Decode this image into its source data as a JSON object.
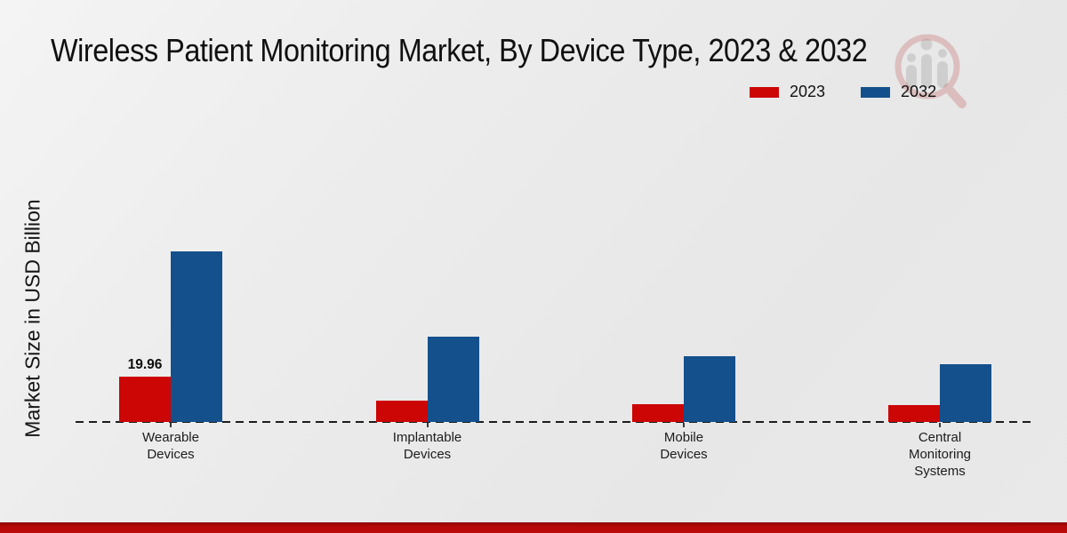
{
  "page": {
    "title": "Wireless Patient Monitoring Market, By Device Type, 2023 & 2032",
    "background_color": "#e9e9e9",
    "footer_bar_color": "#b50808",
    "watermark_icon": "magnifier-bar-chart-logo"
  },
  "chart_data": {
    "type": "bar",
    "title": "Wireless Patient Monitoring Market, By Device Type, 2023 & 2032",
    "xlabel": "",
    "ylabel": "Market Size in USD Billion",
    "categories": [
      "Wearable Devices",
      "Implantable Devices",
      "Mobile Devices",
      "Central Monitoring Systems"
    ],
    "category_label_lines": [
      [
        "Wearable",
        "Devices"
      ],
      [
        "Implantable",
        "Devices"
      ],
      [
        "Mobile",
        "Devices"
      ],
      [
        "Central",
        "Monitoring",
        "Systems"
      ]
    ],
    "series": [
      {
        "name": "2023",
        "color": "#cc0505",
        "values": [
          19.96,
          9.4,
          7.7,
          7.3
        ]
      },
      {
        "name": "2032",
        "color": "#14508c",
        "values": [
          75.1,
          37.6,
          28.8,
          25.3
        ]
      }
    ],
    "annotations": [
      {
        "series": "2023",
        "category": "Wearable Devices",
        "category_index": 0,
        "text": "19.96"
      }
    ],
    "legend_position": "top-right",
    "grid": false,
    "baseline_style": "dashed",
    "ylim": [
      0,
      140
    ],
    "units": "USD Billion"
  }
}
